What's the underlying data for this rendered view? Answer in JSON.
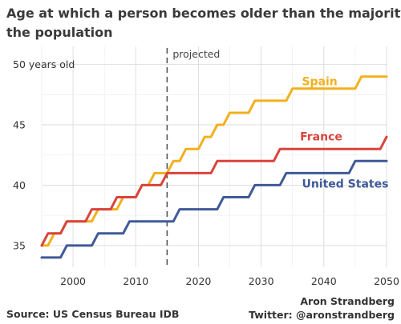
{
  "chart_data": {
    "type": "line",
    "title_lines": [
      "Age at which a person becomes older than the majority of",
      "the population"
    ],
    "x_ticks": [
      2000,
      2010,
      2020,
      2030,
      2040,
      2050
    ],
    "y_ticks": [
      {
        "value": 35,
        "label": "35"
      },
      {
        "value": 40,
        "label": "40"
      },
      {
        "value": 45,
        "label": "45"
      },
      {
        "value": 50,
        "label": "50 years old"
      }
    ],
    "xlim": [
      1995,
      2050
    ],
    "ylim": [
      33.2,
      51.5
    ],
    "grid": true,
    "projected_divider": {
      "x": 2015,
      "label": "projected"
    },
    "series": [
      {
        "name": "Spain",
        "color": "#F2B01E",
        "points": [
          [
            1995,
            35
          ],
          [
            1996,
            35
          ],
          [
            1997,
            36
          ],
          [
            1998,
            36
          ],
          [
            1999,
            37
          ],
          [
            2001,
            37
          ],
          [
            2002,
            37
          ],
          [
            2003,
            37
          ],
          [
            2004,
            38
          ],
          [
            2006,
            38
          ],
          [
            2007,
            38
          ],
          [
            2008,
            39
          ],
          [
            2009,
            39
          ],
          [
            2010,
            39
          ],
          [
            2011,
            40
          ],
          [
            2012,
            40
          ],
          [
            2013,
            41
          ],
          [
            2014,
            41
          ],
          [
            2015,
            41
          ],
          [
            2016,
            42
          ],
          [
            2017,
            42
          ],
          [
            2018,
            43
          ],
          [
            2019,
            43
          ],
          [
            2020,
            43
          ],
          [
            2021,
            44
          ],
          [
            2022,
            44
          ],
          [
            2023,
            45
          ],
          [
            2024,
            45
          ],
          [
            2025,
            46
          ],
          [
            2027,
            46
          ],
          [
            2028,
            46
          ],
          [
            2029,
            47
          ],
          [
            2030,
            47
          ],
          [
            2032,
            47
          ],
          [
            2034,
            47
          ],
          [
            2035,
            48
          ],
          [
            2037,
            48
          ],
          [
            2040,
            48
          ],
          [
            2044,
            48
          ],
          [
            2045,
            48
          ],
          [
            2046,
            49
          ],
          [
            2048,
            49
          ],
          [
            2050,
            49
          ]
        ]
      },
      {
        "name": "France",
        "color": "#D9443C",
        "points": [
          [
            1995,
            35
          ],
          [
            1996,
            36
          ],
          [
            1997,
            36
          ],
          [
            1998,
            36
          ],
          [
            1999,
            37
          ],
          [
            2001,
            37
          ],
          [
            2002,
            37
          ],
          [
            2003,
            38
          ],
          [
            2005,
            38
          ],
          [
            2006,
            38
          ],
          [
            2007,
            39
          ],
          [
            2009,
            39
          ],
          [
            2010,
            39
          ],
          [
            2011,
            40
          ],
          [
            2013,
            40
          ],
          [
            2014,
            40
          ],
          [
            2015,
            41
          ],
          [
            2018,
            41
          ],
          [
            2020,
            41
          ],
          [
            2022,
            41
          ],
          [
            2023,
            42
          ],
          [
            2025,
            42
          ],
          [
            2030,
            42
          ],
          [
            2032,
            42
          ],
          [
            2033,
            43
          ],
          [
            2040,
            43
          ],
          [
            2045,
            43
          ],
          [
            2049,
            43
          ],
          [
            2050,
            44
          ]
        ]
      },
      {
        "name": "United States",
        "color": "#3F5A9A",
        "points": [
          [
            1995,
            34
          ],
          [
            1998,
            34
          ],
          [
            1999,
            35
          ],
          [
            2001,
            35
          ],
          [
            2003,
            35
          ],
          [
            2004,
            36
          ],
          [
            2006,
            36
          ],
          [
            2008,
            36
          ],
          [
            2009,
            37
          ],
          [
            2012,
            37
          ],
          [
            2015,
            37
          ],
          [
            2016,
            37
          ],
          [
            2017,
            38
          ],
          [
            2020,
            38
          ],
          [
            2022,
            38
          ],
          [
            2023,
            38
          ],
          [
            2024,
            39
          ],
          [
            2026,
            39
          ],
          [
            2028,
            39
          ],
          [
            2029,
            40
          ],
          [
            2032,
            40
          ],
          [
            2033,
            40
          ],
          [
            2034,
            41
          ],
          [
            2040,
            41
          ],
          [
            2044,
            41
          ],
          [
            2045,
            42
          ],
          [
            2048,
            42
          ],
          [
            2050,
            42
          ]
        ]
      }
    ],
    "series_label_anchor": {
      "Spain": [
        2036.5,
        48.3
      ],
      "France": [
        2036.2,
        43.7
      ],
      "United States": [
        2036.5,
        39.8
      ]
    },
    "footer_left": "Source: US Census Bureau IDB",
    "footer_right_lines": [
      "Aron Strandberg",
      "Twitter: @aronstrandberg"
    ]
  }
}
